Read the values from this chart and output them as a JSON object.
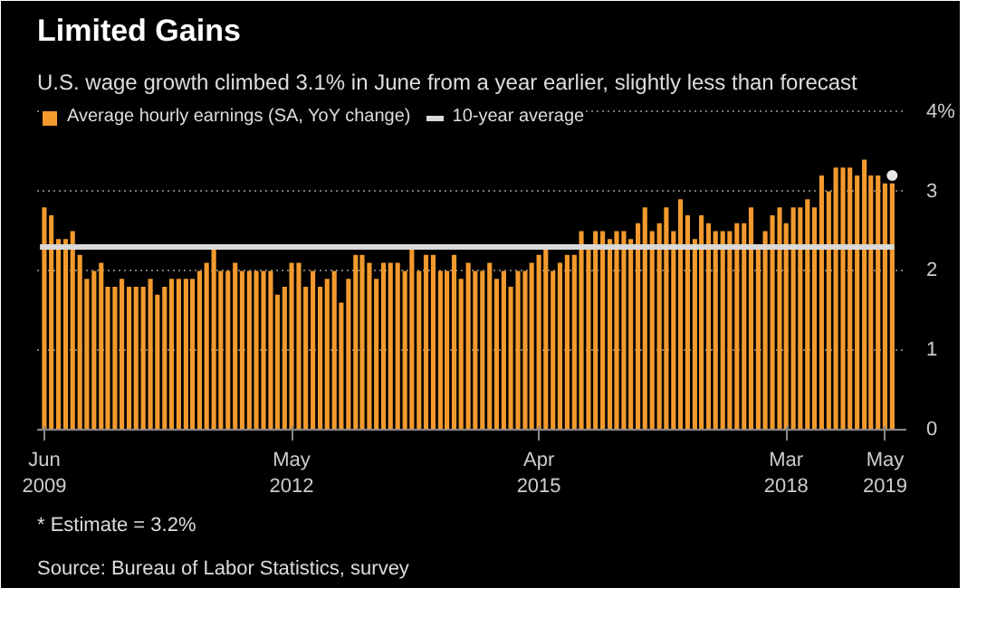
{
  "chart_data": {
    "type": "bar",
    "title": "Limited Gains",
    "subtitle": "U.S. wage growth climbed 3.1% in June from a year earlier, slightly less than forecast",
    "x": [
      "2009-06",
      "2009-07",
      "2009-08",
      "2009-09",
      "2009-10",
      "2009-11",
      "2009-12",
      "2010-01",
      "2010-02",
      "2010-03",
      "2010-04",
      "2010-05",
      "2010-06",
      "2010-07",
      "2010-08",
      "2010-09",
      "2010-10",
      "2010-11",
      "2010-12",
      "2011-01",
      "2011-02",
      "2011-03",
      "2011-04",
      "2011-05",
      "2011-06",
      "2011-07",
      "2011-08",
      "2011-09",
      "2011-10",
      "2011-11",
      "2011-12",
      "2012-01",
      "2012-02",
      "2012-03",
      "2012-04",
      "2012-05",
      "2012-06",
      "2012-07",
      "2012-08",
      "2012-09",
      "2012-10",
      "2012-11",
      "2012-12",
      "2013-01",
      "2013-02",
      "2013-03",
      "2013-04",
      "2013-05",
      "2013-06",
      "2013-07",
      "2013-08",
      "2013-09",
      "2013-10",
      "2013-11",
      "2013-12",
      "2014-01",
      "2014-02",
      "2014-03",
      "2014-04",
      "2014-05",
      "2014-06",
      "2014-07",
      "2014-08",
      "2014-09",
      "2014-10",
      "2014-11",
      "2014-12",
      "2015-01",
      "2015-02",
      "2015-03",
      "2015-04",
      "2015-05",
      "2015-06",
      "2015-07",
      "2015-08",
      "2015-09",
      "2015-10",
      "2015-11",
      "2015-12",
      "2016-01",
      "2016-02",
      "2016-03",
      "2016-04",
      "2016-05",
      "2016-06",
      "2016-07",
      "2016-08",
      "2016-09",
      "2016-10",
      "2016-11",
      "2016-12",
      "2017-01",
      "2017-02",
      "2017-03",
      "2017-04",
      "2017-05",
      "2017-06",
      "2017-07",
      "2017-08",
      "2017-09",
      "2017-10",
      "2017-11",
      "2017-12",
      "2018-01",
      "2018-02",
      "2018-03",
      "2018-04",
      "2018-05",
      "2018-06",
      "2018-07",
      "2018-08",
      "2018-09",
      "2018-10",
      "2018-11",
      "2018-12",
      "2019-01",
      "2019-02",
      "2019-03",
      "2019-04",
      "2019-05",
      "2019-06"
    ],
    "series": [
      {
        "name": "Average hourly earnings (SA, YoY change)",
        "color": "#f39a2e",
        "values": [
          2.8,
          2.7,
          2.4,
          2.4,
          2.5,
          2.2,
          1.9,
          2.0,
          2.1,
          1.8,
          1.8,
          1.9,
          1.8,
          1.8,
          1.8,
          1.9,
          1.7,
          1.8,
          1.9,
          1.9,
          1.9,
          1.9,
          2.0,
          2.1,
          2.3,
          2.0,
          2.0,
          2.1,
          2.0,
          2.0,
          2.0,
          2.0,
          2.0,
          1.7,
          1.8,
          2.1,
          2.1,
          1.8,
          2.0,
          1.8,
          1.9,
          2.0,
          1.6,
          1.9,
          2.2,
          2.2,
          2.1,
          1.9,
          2.1,
          2.1,
          2.1,
          2.0,
          2.3,
          2.0,
          2.2,
          2.2,
          2.0,
          2.0,
          2.2,
          1.9,
          2.1,
          2.0,
          2.0,
          2.1,
          1.9,
          2.0,
          1.8,
          2.0,
          2.0,
          2.1,
          2.2,
          2.3,
          2.0,
          2.1,
          2.2,
          2.2,
          2.5,
          2.3,
          2.5,
          2.5,
          2.4,
          2.5,
          2.5,
          2.4,
          2.6,
          2.8,
          2.5,
          2.6,
          2.8,
          2.5,
          2.9,
          2.7,
          2.4,
          2.7,
          2.6,
          2.5,
          2.5,
          2.5,
          2.6,
          2.6,
          2.8,
          2.3,
          2.5,
          2.7,
          2.8,
          2.6,
          2.8,
          2.8,
          2.9,
          2.8,
          3.2,
          3.0,
          3.3,
          3.3,
          3.3,
          3.2,
          3.4,
          3.2,
          3.2,
          3.1,
          3.1
        ]
      },
      {
        "type": "scatter",
        "color": "#e8e8e8",
        "x": [
          "2019-06"
        ],
        "values": [
          3.2
        ]
      }
    ],
    "ref_lines": [
      {
        "axis": "y",
        "value": 2.3,
        "label": "10-year average",
        "color": "#d9d9d9"
      }
    ],
    "xlim": [
      "2009-05",
      "2019-08"
    ],
    "xticks": [
      {
        "value": "2009-06",
        "label": "Jun\n2009"
      },
      {
        "value": "2012-05",
        "label": "May\n2012"
      },
      {
        "value": "2015-04",
        "label": "Apr\n2015"
      },
      {
        "value": "2018-03",
        "label": "Mar\n2018"
      },
      {
        "value": "2019-05",
        "label": "May\n2019"
      }
    ],
    "ylim": [
      0,
      4.1
    ],
    "yticks": [
      0,
      1,
      2,
      3,
      {
        "value": 4,
        "label": "4%"
      }
    ],
    "grid": "y",
    "legend": "top left",
    "annotations": [
      "* Estimate = 3.2%",
      "Source: Bureau of Labor Statistics, survey"
    ]
  }
}
